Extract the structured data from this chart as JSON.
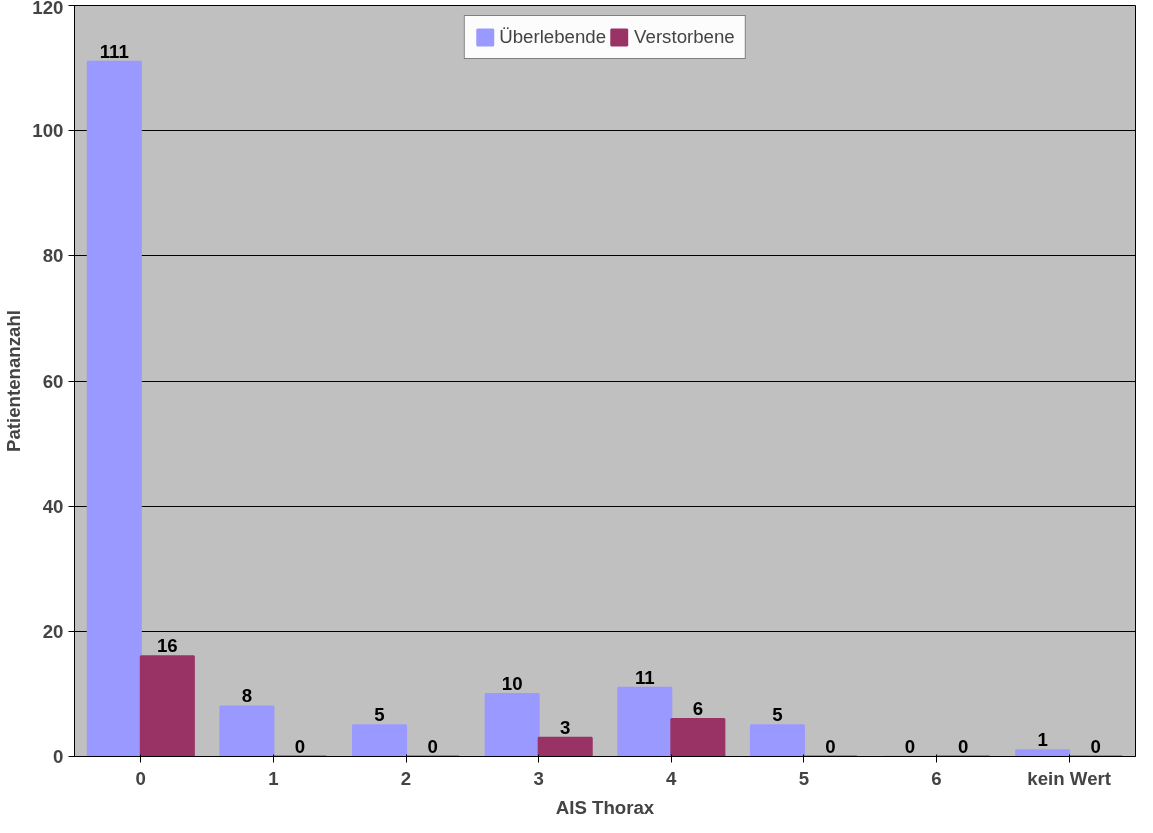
{
  "chart_data": {
    "type": "bar",
    "xlabel": "AIS Thorax",
    "ylabel": "Patientenanzahl",
    "categories": [
      "0",
      "1",
      "2",
      "3",
      "4",
      "5",
      "6",
      "kein Wert"
    ],
    "series": [
      {
        "name": "Überlebende",
        "color": "#9999ff",
        "values": [
          111,
          8,
          5,
          10,
          11,
          5,
          0,
          1
        ]
      },
      {
        "name": "Verstorbene",
        "color": "#993366",
        "values": [
          16,
          0,
          0,
          3,
          6,
          0,
          0,
          0
        ]
      }
    ],
    "ylim": [
      0,
      120
    ],
    "yticks": [
      0,
      20,
      40,
      60,
      80,
      100,
      120
    ],
    "grid": "y",
    "legend": "top",
    "data_labels": true
  }
}
